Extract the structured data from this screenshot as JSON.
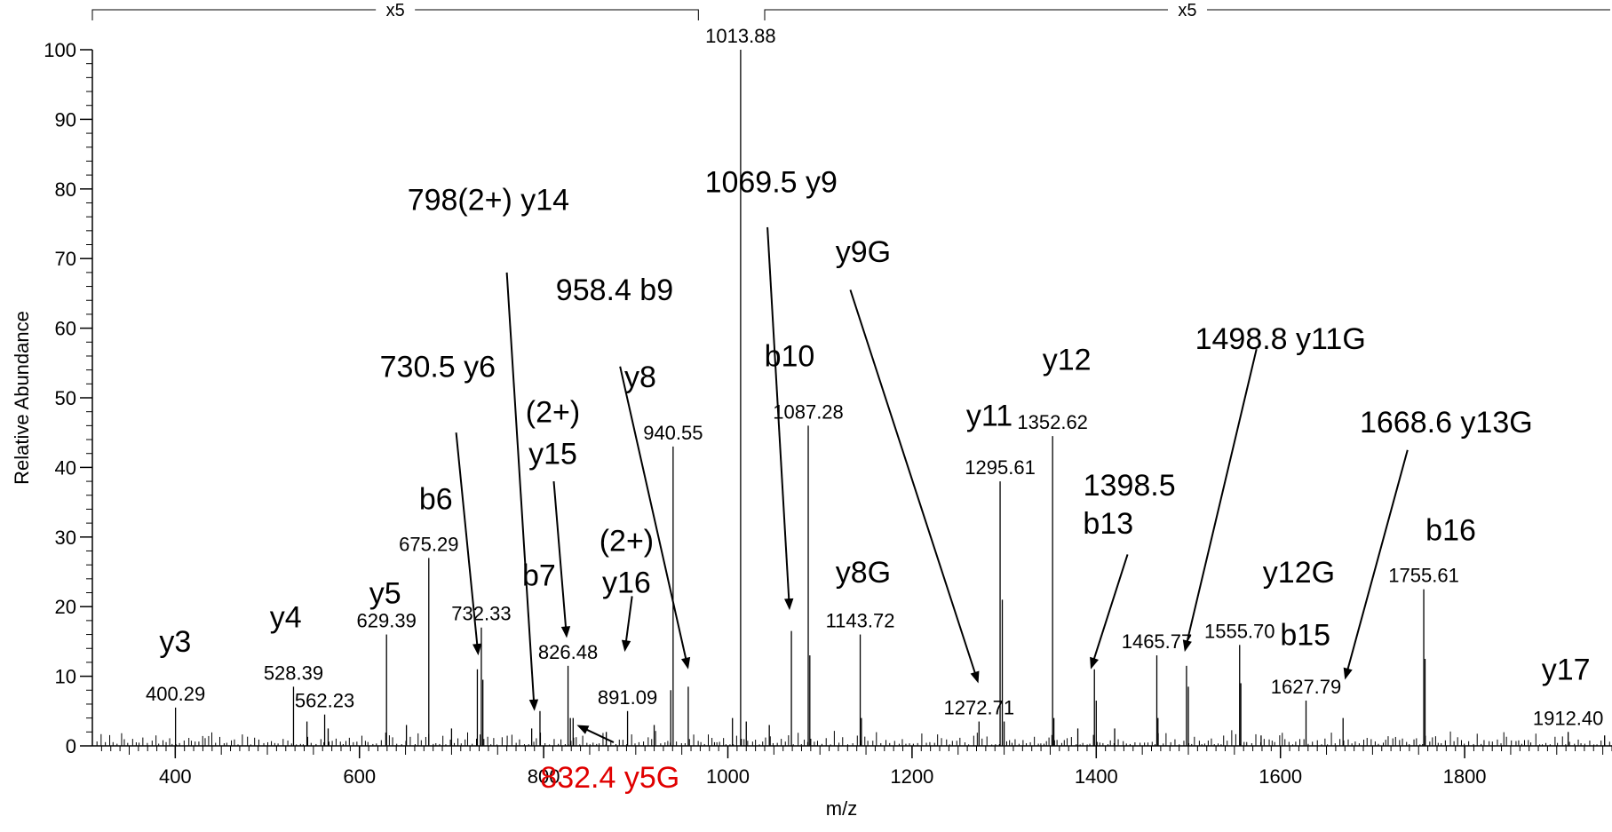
{
  "chart_data": {
    "type": "bar",
    "title": "",
    "xlabel": "m/z",
    "ylabel": "Relative Abundance",
    "xlim": [
      310,
      1960
    ],
    "ylim": [
      0,
      100
    ],
    "x_ticks": [
      400,
      600,
      800,
      1000,
      1200,
      1400,
      1600,
      1800
    ],
    "y_ticks": [
      0,
      10,
      20,
      30,
      40,
      50,
      60,
      70,
      80,
      90,
      100
    ],
    "scale_marks": [
      {
        "label": "x5",
        "from": 310,
        "to": 968
      },
      {
        "label": "x5",
        "from": 1040,
        "to": 1960
      }
    ],
    "labeled_peaks": [
      {
        "mz": 400.29,
        "label": "400.29",
        "intensity": 5.5
      },
      {
        "mz": 528.39,
        "label": "528.39",
        "intensity": 8.5
      },
      {
        "mz": 562.23,
        "label": "562.23",
        "intensity": 4.5
      },
      {
        "mz": 629.39,
        "label": "629.39",
        "intensity": 16
      },
      {
        "mz": 675.29,
        "label": "675.29",
        "intensity": 27
      },
      {
        "mz": 732.33,
        "label": "732.33",
        "intensity": 17
      },
      {
        "mz": 826.48,
        "label": "826.48",
        "intensity": 11.5
      },
      {
        "mz": 891.09,
        "label": "891.09",
        "intensity": 5
      },
      {
        "mz": 940.55,
        "label": "940.55",
        "intensity": 43
      },
      {
        "mz": 1013.88,
        "label": "1013.88",
        "intensity": 100
      },
      {
        "mz": 1087.28,
        "label": "1087.28",
        "intensity": 46
      },
      {
        "mz": 1143.72,
        "label": "1143.72",
        "intensity": 16
      },
      {
        "mz": 1272.71,
        "label": "1272.71",
        "intensity": 3.5
      },
      {
        "mz": 1295.61,
        "label": "1295.61",
        "intensity": 38
      },
      {
        "mz": 1352.62,
        "label": "1352.62",
        "intensity": 44.5
      },
      {
        "mz": 1465.77,
        "label": "1465.77",
        "intensity": 13
      },
      {
        "mz": 1555.7,
        "label": "1555.70",
        "intensity": 14.5
      },
      {
        "mz": 1627.79,
        "label": "1627.79",
        "intensity": 6.5
      },
      {
        "mz": 1755.61,
        "label": "1755.61",
        "intensity": 22.5
      },
      {
        "mz": 1912.4,
        "label": "1912.40",
        "intensity": 2
      }
    ],
    "minor_peaks": [
      {
        "mz": 543,
        "intensity": 3.5
      },
      {
        "mz": 566,
        "intensity": 2.5
      },
      {
        "mz": 651,
        "intensity": 3
      },
      {
        "mz": 700,
        "intensity": 2.5
      },
      {
        "mz": 728,
        "intensity": 11
      },
      {
        "mz": 734,
        "intensity": 9.5
      },
      {
        "mz": 787,
        "intensity": 2.5
      },
      {
        "mz": 796,
        "intensity": 5
      },
      {
        "mz": 829,
        "intensity": 4
      },
      {
        "mz": 832,
        "intensity": 4
      },
      {
        "mz": 868,
        "intensity": 2
      },
      {
        "mz": 920,
        "intensity": 3
      },
      {
        "mz": 938,
        "intensity": 8
      },
      {
        "mz": 957,
        "intensity": 8.5
      },
      {
        "mz": 1005,
        "intensity": 4
      },
      {
        "mz": 1020,
        "intensity": 3.5
      },
      {
        "mz": 1045,
        "intensity": 3
      },
      {
        "mz": 1069,
        "intensity": 16.5
      },
      {
        "mz": 1089,
        "intensity": 13
      },
      {
        "mz": 1145,
        "intensity": 4
      },
      {
        "mz": 1298,
        "intensity": 21
      },
      {
        "mz": 1300,
        "intensity": 3.5
      },
      {
        "mz": 1354,
        "intensity": 4
      },
      {
        "mz": 1380,
        "intensity": 2.5
      },
      {
        "mz": 1398,
        "intensity": 11
      },
      {
        "mz": 1400,
        "intensity": 6.5
      },
      {
        "mz": 1420,
        "intensity": 2.5
      },
      {
        "mz": 1467,
        "intensity": 4
      },
      {
        "mz": 1498,
        "intensity": 11.5
      },
      {
        "mz": 1500,
        "intensity": 8.5
      },
      {
        "mz": 1557,
        "intensity": 9
      },
      {
        "mz": 1579,
        "intensity": 1.5
      },
      {
        "mz": 1668,
        "intensity": 4
      },
      {
        "mz": 1757,
        "intensity": 12.5
      },
      {
        "mz": 1952,
        "intensity": 1.5
      }
    ],
    "annotations": [
      {
        "text": "y3",
        "mz": 400,
        "intensity": 13.5
      },
      {
        "text": "y4",
        "mz": 520,
        "intensity": 17
      },
      {
        "text": "y5",
        "mz": 628,
        "intensity": 20.5
      },
      {
        "text": "b6",
        "mz": 683,
        "intensity": 34
      },
      {
        "text": "b7",
        "mz": 795,
        "intensity": 23
      },
      {
        "text": "730.5 y6",
        "mz": 685,
        "intensity": 53
      },
      {
        "text": "798(2+) y14",
        "mz": 740,
        "intensity": 77
      },
      {
        "text": "(2+)",
        "mz": 810,
        "intensity": 46.5
      },
      {
        "text": "y15",
        "mz": 810,
        "intensity": 40.5
      },
      {
        "text": "(2+)",
        "mz": 890,
        "intensity": 28
      },
      {
        "text": "y16",
        "mz": 890,
        "intensity": 22
      },
      {
        "text": "y8",
        "mz": 905,
        "intensity": 51.5
      },
      {
        "text": "958.4 b9",
        "mz": 877,
        "intensity": 64
      },
      {
        "text": "1069.5 y9",
        "mz": 1047,
        "intensity": 79.5
      },
      {
        "text": "b10",
        "mz": 1067,
        "intensity": 54.5
      },
      {
        "text": "y9G",
        "mz": 1147,
        "intensity": 69.5
      },
      {
        "text": "y8G",
        "mz": 1147,
        "intensity": 23.5
      },
      {
        "text": "y11",
        "mz": 1284,
        "intensity": 46
      },
      {
        "text": "y12",
        "mz": 1368,
        "intensity": 54
      },
      {
        "text": "1398.5",
        "mz": 1436,
        "intensity": 36
      },
      {
        "text": "b13",
        "mz": 1413,
        "intensity": 30.5
      },
      {
        "text": "1498.8 y11G",
        "mz": 1600,
        "intensity": 57
      },
      {
        "text": "y12G",
        "mz": 1620,
        "intensity": 23.5
      },
      {
        "text": "b15",
        "mz": 1627,
        "intensity": 14.5
      },
      {
        "text": "1668.6 y13G",
        "mz": 1780,
        "intensity": 45
      },
      {
        "text": "b16",
        "mz": 1785,
        "intensity": 29.5
      },
      {
        "text": "y17",
        "mz": 1910,
        "intensity": 9.5
      },
      {
        "text": "832.4 y5G",
        "mz": 872,
        "intensity": -6,
        "color": "#e00000"
      }
    ],
    "arrows": [
      {
        "from": [
          705,
          45
        ],
        "to": [
          729,
          13
        ]
      },
      {
        "from": [
          760,
          68
        ],
        "to": [
          790,
          5
        ]
      },
      {
        "from": [
          811,
          38
        ],
        "to": [
          825,
          15.5
        ]
      },
      {
        "from": [
          896,
          21.5
        ],
        "to": [
          888,
          13.5
        ]
      },
      {
        "from": [
          883,
          54.5
        ],
        "to": [
          957,
          11
        ]
      },
      {
        "from": [
          1043,
          74.5
        ],
        "to": [
          1067,
          19.5
        ]
      },
      {
        "from": [
          1133,
          65.5
        ],
        "to": [
          1272,
          9
        ]
      },
      {
        "from": [
          1434,
          27.5
        ],
        "to": [
          1394,
          11
        ]
      },
      {
        "from": [
          1574,
          57
        ],
        "to": [
          1496,
          13.5
        ]
      },
      {
        "from": [
          1738,
          42.5
        ],
        "to": [
          1670,
          9.5
        ]
      },
      {
        "from": [
          876,
          0.5
        ],
        "to": [
          836,
          3
        ]
      }
    ],
    "grid": false,
    "legend": "none"
  }
}
